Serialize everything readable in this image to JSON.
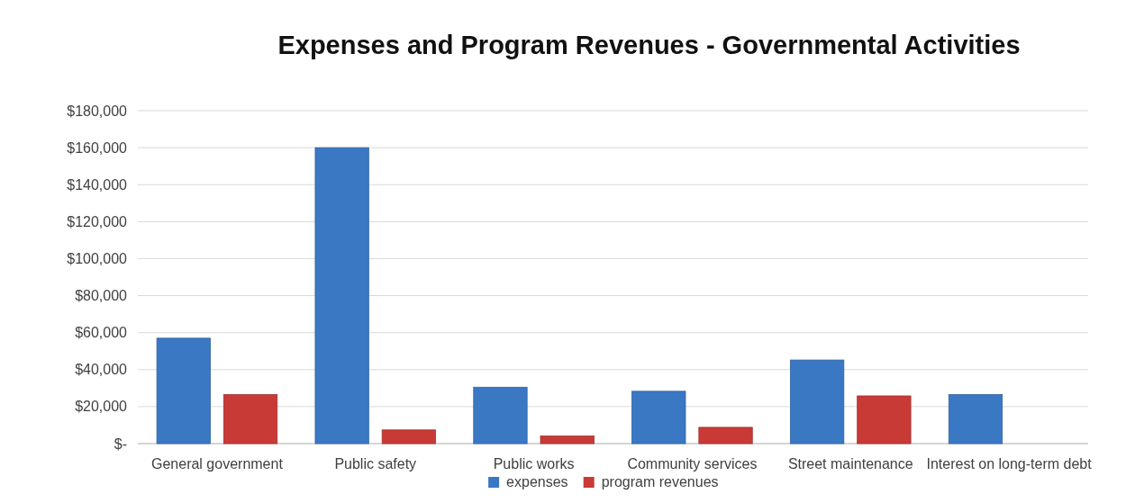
{
  "chart_data": {
    "type": "bar",
    "title": "Expenses and Program Revenues - Governmental Activities",
    "categories": [
      "General government",
      "Public safety",
      "Public works",
      "Community services",
      "Street maintenance",
      "Interest on long-term debt"
    ],
    "series": [
      {
        "name": "expenses",
        "color": "#3a78c4",
        "values": [
          57000,
          160000,
          30500,
          28300,
          45200,
          26500
        ]
      },
      {
        "name": "program revenues",
        "color": "#c83a36",
        "values": [
          26500,
          7400,
          4100,
          8800,
          25800,
          null
        ]
      }
    ],
    "ylim": [
      0,
      180000
    ],
    "yticks": [
      {
        "value": 0,
        "label": "$-"
      },
      {
        "value": 20000,
        "label": "$20,000"
      },
      {
        "value": 40000,
        "label": "$40,000"
      },
      {
        "value": 60000,
        "label": "$60,000"
      },
      {
        "value": 80000,
        "label": "$80,000"
      },
      {
        "value": 100000,
        "label": "$100,000"
      },
      {
        "value": 120000,
        "label": "$120,000"
      },
      {
        "value": 140000,
        "label": "$140,000"
      },
      {
        "value": 160000,
        "label": "$160,000"
      },
      {
        "value": 180000,
        "label": "$180,000"
      }
    ],
    "grid": "y",
    "legend": "bottom"
  }
}
